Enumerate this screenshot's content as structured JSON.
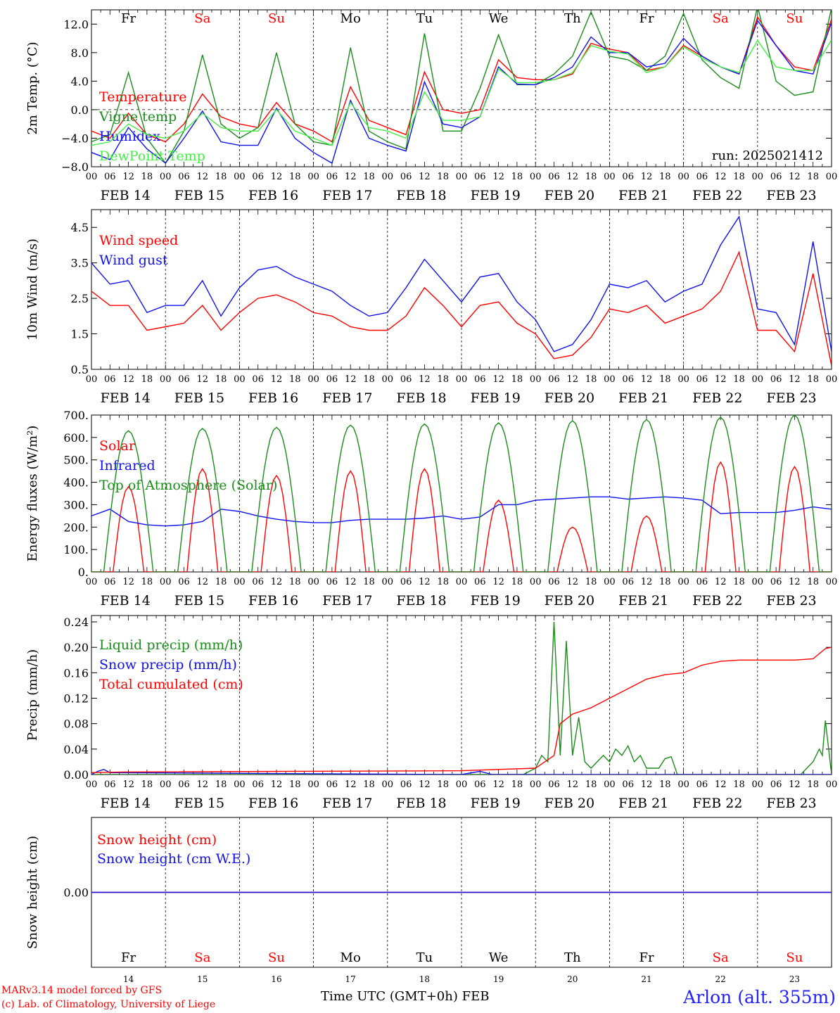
{
  "station_title": "Arlon (alt. 355m)",
  "credits": [
    "MARv3.14 model forced by GFS",
    "(c) Lab. of Climatology, University of Liege"
  ],
  "xaxis_title": "Time UTC (GMT+0h)",
  "month_label": "FEB",
  "colors": {
    "red": "#ff0000",
    "green": "#1a8c1a",
    "blue": "#1010ee",
    "lightgreen": "#44ee44",
    "weekend": "#ff0000",
    "weekday": "#000000"
  },
  "chart_data": [
    {
      "id": "temp",
      "type": "line",
      "ylabel": "2m Temp. (°C)",
      "ylim": [
        -8,
        14
      ],
      "yticks": [
        -8,
        -4,
        0,
        4,
        8,
        12
      ],
      "yticklabels": [
        "−8.0",
        "−4.0",
        "0.0",
        "4.0",
        "8.0",
        "12.0"
      ],
      "zero_line": true,
      "days": [
        "Fr",
        "Sa",
        "Su",
        "Mo",
        "Tu",
        "We",
        "Th",
        "Fr",
        "Sa",
        "Su"
      ],
      "weekend": [
        false,
        true,
        true,
        false,
        false,
        false,
        false,
        false,
        true,
        true
      ],
      "annotation": "run: 2025021412",
      "x_unit": "hours from 2025-02-14 00 UTC",
      "series": [
        {
          "name": "Temperature",
          "color": "red",
          "x": [
            0,
            6,
            12,
            18,
            24,
            30,
            36,
            42,
            48,
            54,
            60,
            66,
            72,
            78,
            84,
            90,
            96,
            102,
            108,
            114,
            120,
            126,
            132,
            138,
            144,
            150,
            156,
            162,
            168,
            174,
            180,
            186,
            192,
            198,
            204,
            210,
            216,
            222,
            228,
            234,
            240
          ],
          "y": [
            -3,
            -4,
            -0.5,
            -3.5,
            -4.5,
            -2,
            2.2,
            -1,
            -2,
            -2.5,
            1,
            -2,
            -3,
            -4.5,
            3.2,
            -1.5,
            -2.5,
            -3.5,
            5.3,
            0,
            -0.5,
            0,
            7,
            4.5,
            4.2,
            4.2,
            5,
            9.3,
            8.5,
            8,
            5.5,
            6,
            9,
            7.5,
            6,
            5,
            13,
            9,
            6,
            5.5,
            12.7
          ]
        },
        {
          "name": "Vigne temp",
          "color": "green",
          "x": [
            0,
            6,
            12,
            18,
            24,
            30,
            36,
            42,
            48,
            54,
            60,
            66,
            72,
            78,
            84,
            90,
            96,
            102,
            108,
            114,
            120,
            126,
            132,
            138,
            144,
            150,
            156,
            162,
            168,
            174,
            180,
            186,
            192,
            198,
            204,
            210,
            216,
            222,
            228,
            234,
            240
          ],
          "y": [
            -4.5,
            -3.5,
            5.2,
            -4,
            -7.5,
            -3,
            7.7,
            -2,
            -4,
            -2.5,
            8,
            -2,
            -4.5,
            -5,
            8.7,
            -3,
            -4.5,
            -5.5,
            10.7,
            -3,
            -3,
            3,
            10.5,
            3.5,
            3.5,
            5,
            7.5,
            13.7,
            7.5,
            7,
            5.5,
            7.5,
            13.5,
            7,
            4.5,
            3,
            14.5,
            4,
            2,
            2.5,
            14.3
          ]
        },
        {
          "name": "Humidex",
          "color": "blue",
          "x": [
            0,
            6,
            12,
            18,
            24,
            30,
            36,
            42,
            48,
            54,
            60,
            66,
            72,
            78,
            84,
            90,
            96,
            102,
            108,
            114,
            120,
            126,
            132,
            138,
            144,
            150,
            156,
            162,
            168,
            174,
            180,
            186,
            192,
            198,
            204,
            210,
            216,
            222,
            228,
            234,
            240
          ],
          "y": [
            -6,
            -7,
            -2.5,
            -5.5,
            -7.5,
            -4,
            -0.2,
            -4.5,
            -5,
            -5,
            0.2,
            -4,
            -6,
            -7.5,
            1.3,
            -4,
            -5,
            -5.8,
            3.9,
            -2,
            -2.5,
            -1,
            6,
            3.6,
            3.5,
            4.5,
            6,
            10.2,
            8,
            8,
            6,
            6.5,
            10,
            7.5,
            6,
            5,
            12.5,
            9,
            5.5,
            5,
            12.2
          ]
        },
        {
          "name": "DewPoint Temp",
          "color": "lightgreen",
          "x": [
            0,
            6,
            12,
            18,
            24,
            30,
            36,
            42,
            48,
            54,
            60,
            66,
            72,
            78,
            84,
            90,
            96,
            102,
            108,
            114,
            120,
            126,
            132,
            138,
            144,
            150,
            156,
            162,
            168,
            174,
            180,
            186,
            192,
            198,
            204,
            210,
            216,
            222,
            228,
            234,
            240
          ],
          "y": [
            -5,
            -4.5,
            -2,
            -3.5,
            -4,
            -3,
            -0.5,
            -2.5,
            -3,
            -3,
            0,
            -3,
            -4,
            -5,
            1,
            -2.5,
            -3,
            -4,
            2.5,
            -1.5,
            -1.5,
            -1,
            5.7,
            3.8,
            3.8,
            4.2,
            5.2,
            9,
            8.2,
            7.8,
            5.2,
            6,
            8.8,
            7.2,
            6,
            5.2,
            9.7,
            6,
            5.5,
            5.5,
            9.8
          ]
        }
      ]
    },
    {
      "id": "wind",
      "type": "line",
      "ylabel": "10m Wind (m/s)",
      "ylim": [
        0.5,
        5
      ],
      "yticks": [
        0.5,
        1.5,
        2.5,
        3.5,
        4.5
      ],
      "yticklabels": [
        "0.5",
        "1.5",
        "2.5",
        "3.5",
        "4.5"
      ],
      "series": [
        {
          "name": "Wind speed",
          "color": "red",
          "x": [
            0,
            6,
            12,
            18,
            24,
            30,
            36,
            42,
            48,
            54,
            60,
            66,
            72,
            78,
            84,
            90,
            96,
            102,
            108,
            114,
            120,
            126,
            132,
            138,
            144,
            150,
            156,
            162,
            168,
            174,
            180,
            186,
            192,
            198,
            204,
            210,
            216,
            222,
            228,
            234,
            240
          ],
          "y": [
            2.7,
            2.3,
            2.3,
            1.6,
            1.7,
            1.8,
            2.3,
            1.6,
            2.1,
            2.5,
            2.6,
            2.4,
            2.1,
            2.0,
            1.7,
            1.6,
            1.6,
            2.0,
            2.8,
            2.3,
            1.7,
            2.3,
            2.4,
            1.8,
            1.5,
            0.8,
            0.9,
            1.4,
            2.2,
            2.1,
            2.3,
            1.8,
            2.0,
            2.2,
            2.7,
            3.8,
            1.6,
            1.6,
            1.0,
            3.2,
            0.6
          ]
        },
        {
          "name": "Wind gust",
          "color": "blue",
          "x": [
            0,
            6,
            12,
            18,
            24,
            30,
            36,
            42,
            48,
            54,
            60,
            66,
            72,
            78,
            84,
            90,
            96,
            102,
            108,
            114,
            120,
            126,
            132,
            138,
            144,
            150,
            156,
            162,
            168,
            174,
            180,
            186,
            192,
            198,
            204,
            210,
            216,
            222,
            228,
            234,
            240
          ],
          "y": [
            3.5,
            2.9,
            3.0,
            2.1,
            2.3,
            2.3,
            3.0,
            2.0,
            2.8,
            3.3,
            3.4,
            3.1,
            2.9,
            2.7,
            2.3,
            2.0,
            2.1,
            2.8,
            3.6,
            3.0,
            2.4,
            3.1,
            3.2,
            2.4,
            1.9,
            1.0,
            1.2,
            1.9,
            2.9,
            2.8,
            3.0,
            2.4,
            2.7,
            2.9,
            4.0,
            4.8,
            2.2,
            2.1,
            1.2,
            4.1,
            1.0
          ]
        }
      ]
    },
    {
      "id": "flux",
      "type": "line",
      "ylabel": "Energy fluxes (W/m²)",
      "ylim": [
        0,
        700
      ],
      "yticks": [
        0,
        100,
        200,
        300,
        400,
        500,
        600,
        700
      ],
      "yticklabels": [
        "0.",
        "100.",
        "200.",
        "300.",
        "400.",
        "500.",
        "600.",
        "700."
      ],
      "series": [
        {
          "name": "Solar",
          "color": "red",
          "daily_peaks": [
            380,
            460,
            430,
            450,
            460,
            320,
            200,
            250,
            490,
            470
          ]
        },
        {
          "name": "Infrared",
          "color": "blue",
          "x": [
            0,
            6,
            12,
            18,
            24,
            30,
            36,
            42,
            48,
            54,
            60,
            66,
            72,
            78,
            84,
            90,
            96,
            102,
            108,
            114,
            120,
            126,
            132,
            138,
            144,
            150,
            156,
            162,
            168,
            174,
            180,
            186,
            192,
            198,
            204,
            210,
            216,
            222,
            228,
            234,
            240
          ],
          "y": [
            250,
            280,
            225,
            210,
            205,
            210,
            225,
            280,
            270,
            250,
            235,
            225,
            220,
            220,
            230,
            235,
            235,
            235,
            240,
            250,
            235,
            245,
            300,
            300,
            320,
            325,
            330,
            335,
            335,
            325,
            330,
            335,
            330,
            320,
            260,
            265,
            265,
            265,
            275,
            290,
            280
          ]
        },
        {
          "name": "Top of Atmosphere (Solar)",
          "color": "green",
          "daily_peaks": [
            630,
            640,
            645,
            655,
            660,
            665,
            675,
            680,
            690,
            700
          ]
        }
      ]
    },
    {
      "id": "precip",
      "type": "line",
      "ylabel": "Precip (mm/h)",
      "ylim": [
        0,
        0.25
      ],
      "yticks": [
        0,
        0.04,
        0.08,
        0.12,
        0.16,
        0.2,
        0.24
      ],
      "yticklabels": [
        "0.00",
        "0.04",
        "0.08",
        "0.12",
        "0.16",
        "0.20",
        "0.24"
      ],
      "series": [
        {
          "name": "Liquid precip (mm/h)",
          "color": "green",
          "x": [
            0,
            120,
            140,
            144,
            146,
            148,
            150,
            152,
            154,
            156,
            158,
            160,
            162,
            166,
            168,
            170,
            172,
            174,
            176,
            178,
            180,
            184,
            186,
            188,
            190,
            196,
            230,
            234,
            236,
            237,
            238,
            240
          ],
          "y": [
            0,
            0,
            0,
            0.01,
            0.03,
            0.02,
            0.24,
            0.03,
            0.21,
            0.03,
            0.09,
            0.02,
            0.01,
            0.03,
            0.02,
            0.04,
            0.03,
            0.045,
            0.02,
            0.03,
            0.01,
            0.01,
            0.025,
            0.028,
            0,
            0,
            0,
            0.02,
            0.04,
            0.03,
            0.085,
            0
          ]
        },
        {
          "name": "Snow precip (mm/h)",
          "color": "blue",
          "x": [
            0,
            2,
            4,
            6,
            120,
            126,
            130,
            240
          ],
          "y": [
            0,
            0.005,
            0.008,
            0.003,
            0,
            0.005,
            0,
            0
          ]
        },
        {
          "name": "Total cumulated (cm)",
          "color": "red",
          "x": [
            0,
            10,
            120,
            144,
            150,
            152,
            156,
            162,
            168,
            174,
            180,
            186,
            192,
            198,
            204,
            210,
            216,
            222,
            228,
            234,
            238,
            240
          ],
          "y": [
            0.003,
            0.004,
            0.006,
            0.01,
            0.03,
            0.08,
            0.095,
            0.105,
            0.12,
            0.135,
            0.15,
            0.157,
            0.16,
            0.172,
            0.178,
            0.18,
            0.18,
            0.18,
            0.18,
            0.182,
            0.198,
            0.2
          ]
        }
      ]
    },
    {
      "id": "snow",
      "type": "line",
      "ylabel": "Snow height (cm)",
      "ylim": [
        -1,
        1
      ],
      "yticks": [
        0
      ],
      "yticklabels": [
        "0.00"
      ],
      "days": [
        "Fr",
        "Sa",
        "Su",
        "Mo",
        "Tu",
        "We",
        "Th",
        "Fr",
        "Sa",
        "Su"
      ],
      "weekend": [
        false,
        true,
        true,
        false,
        false,
        false,
        false,
        false,
        true,
        true
      ],
      "daynums": [
        "14",
        "15",
        "16",
        "17",
        "18",
        "19",
        "20",
        "21",
        "22",
        "23"
      ],
      "series": [
        {
          "name": "Snow height (cm)",
          "color": "red",
          "x": [
            0,
            240
          ],
          "y": [
            0,
            0
          ]
        },
        {
          "name": "Snow height (cm W.E.)",
          "color": "blue",
          "x": [
            0,
            240
          ],
          "y": [
            0,
            0
          ]
        }
      ]
    }
  ],
  "date_labels": [
    "FEB 14",
    "FEB 15",
    "FEB 16",
    "FEB 17",
    "FEB 18",
    "FEB 19",
    "FEB 20",
    "FEB 21",
    "FEB 22",
    "FEB 23"
  ],
  "hour_ticks": [
    "00",
    "06",
    "12",
    "18"
  ]
}
